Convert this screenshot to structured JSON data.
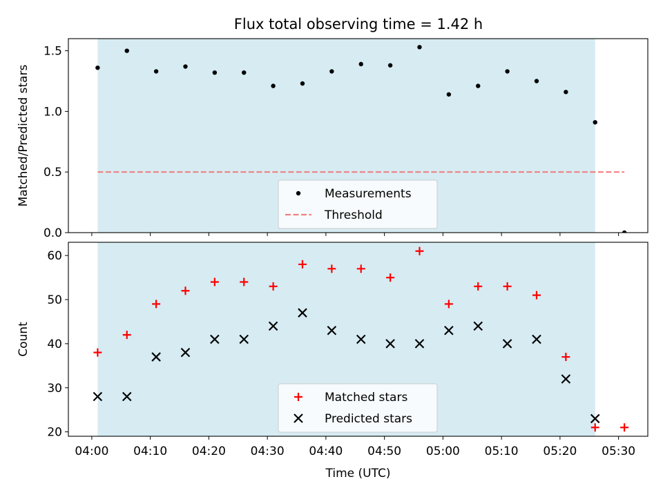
{
  "title": "Flux total observing time = 1.42 h",
  "colors": {
    "band": "#add8e6",
    "measurement": "#000000",
    "threshold": "#f08080",
    "matched": "#ff0000",
    "predicted": "#000000"
  },
  "chart_data": [
    {
      "type": "scatter",
      "panel": "top",
      "ylabel": "Matched/Predicted stars",
      "xlim": [
        "03:56",
        "05:35"
      ],
      "ylim": [
        0,
        1.6
      ],
      "yticks": [
        "0.0",
        "0.5",
        "1.0",
        "1.5"
      ],
      "ytick_values": [
        0,
        0.5,
        1.0,
        1.5
      ],
      "band": [
        "04:01",
        "05:26"
      ],
      "x": [
        "04:01",
        "04:06",
        "04:11",
        "04:16",
        "04:21",
        "04:26",
        "04:31",
        "04:36",
        "04:41",
        "04:46",
        "04:51",
        "04:56",
        "05:01",
        "05:06",
        "05:11",
        "05:16",
        "05:21",
        "05:26",
        "05:31"
      ],
      "series": [
        {
          "name": "Measurements",
          "marker": "dot",
          "values": [
            1.36,
            1.5,
            1.33,
            1.37,
            1.32,
            1.32,
            1.21,
            1.23,
            1.33,
            1.39,
            1.38,
            1.53,
            1.14,
            1.21,
            1.33,
            1.25,
            1.16,
            0.91,
            0.0
          ]
        }
      ],
      "threshold": {
        "name": "Threshold",
        "value": 0.5,
        "x_range": [
          "04:01",
          "05:31"
        ]
      },
      "legend": "lower-center"
    },
    {
      "type": "scatter",
      "panel": "bottom",
      "xlabel": "Time (UTC)",
      "ylabel": "Count",
      "xlim": [
        "03:56",
        "05:35"
      ],
      "ylim": [
        19,
        63
      ],
      "yticks": [
        "20",
        "30",
        "40",
        "50",
        "60"
      ],
      "ytick_values": [
        20,
        30,
        40,
        50,
        60
      ],
      "xticks": [
        "04:00",
        "04:10",
        "04:20",
        "04:30",
        "04:40",
        "04:50",
        "05:00",
        "05:10",
        "05:20",
        "05:30"
      ],
      "band": [
        "04:01",
        "05:26"
      ],
      "x": [
        "04:01",
        "04:06",
        "04:11",
        "04:16",
        "04:21",
        "04:26",
        "04:31",
        "04:36",
        "04:41",
        "04:46",
        "04:51",
        "04:56",
        "05:01",
        "05:06",
        "05:11",
        "05:16",
        "05:21",
        "05:26",
        "05:31"
      ],
      "series": [
        {
          "name": "Matched stars",
          "marker": "plus",
          "values": [
            38,
            42,
            49,
            52,
            54,
            54,
            53,
            58,
            57,
            57,
            55,
            61,
            49,
            53,
            53,
            51,
            37,
            21,
            21
          ]
        },
        {
          "name": "Predicted stars",
          "marker": "x",
          "values": [
            28,
            28,
            37,
            38,
            41,
            41,
            44,
            47,
            43,
            41,
            40,
            40,
            43,
            44,
            40,
            41,
            32,
            23,
            null
          ]
        }
      ],
      "legend": "lower-center"
    }
  ]
}
